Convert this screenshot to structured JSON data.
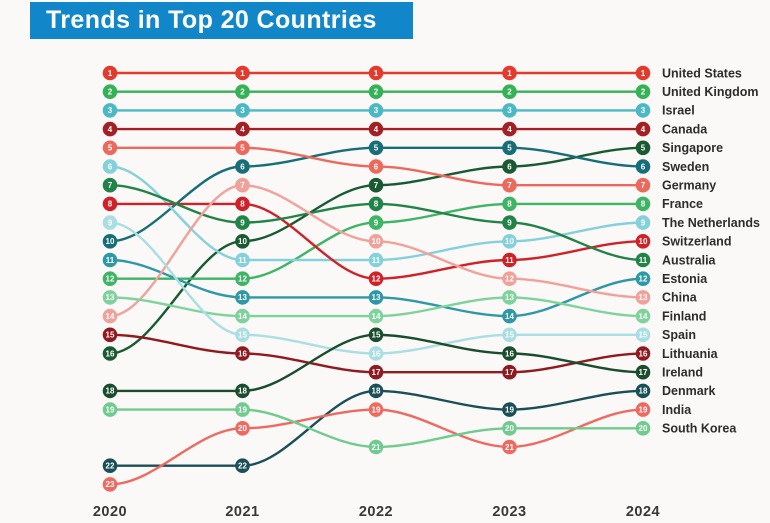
{
  "title": "Trends in Top 20 Countries",
  "banner": {
    "bg": "#1187c9",
    "text_color": "#ffffff"
  },
  "text_colors": {
    "country_labels": "#2e2d2b",
    "year_labels": "#3a3836",
    "node_number": "#ffffff"
  },
  "chart_data": {
    "type": "line",
    "variant": "bump-rank",
    "title": "Trends in Top 20 Countries",
    "x": [
      2020,
      2021,
      2022,
      2023,
      2024
    ],
    "x_tick_labels": [
      "2020",
      "2021",
      "2022",
      "2023",
      "2024"
    ],
    "ylabel": "rank (1 = top, axis inverted)",
    "ylim": [
      1,
      23
    ],
    "grid": false,
    "legend_position": "right-edge country labels at final 2024 rank",
    "node_label": "rank number shown inside each node circle",
    "series": [
      {
        "name": "United States",
        "color": "#e23b2e",
        "ranks": [
          1,
          1,
          1,
          1,
          1
        ]
      },
      {
        "name": "United Kingdom",
        "color": "#35b156",
        "ranks": [
          2,
          2,
          2,
          2,
          2
        ]
      },
      {
        "name": "Israel",
        "color": "#4bb8c6",
        "ranks": [
          3,
          3,
          3,
          3,
          3
        ]
      },
      {
        "name": "Canada",
        "color": "#a32124",
        "ranks": [
          4,
          4,
          4,
          4,
          4
        ]
      },
      {
        "name": "Singapore",
        "color": "#1a5a32",
        "ranks": [
          16,
          10,
          7,
          6,
          5
        ]
      },
      {
        "name": "Sweden",
        "color": "#176e78",
        "ranks": [
          10,
          6,
          5,
          5,
          6
        ]
      },
      {
        "name": "Germany",
        "color": "#ec6a5d",
        "ranks": [
          5,
          5,
          6,
          7,
          7
        ]
      },
      {
        "name": "France",
        "color": "#3eb465",
        "ranks": [
          12,
          12,
          9,
          8,
          8
        ]
      },
      {
        "name": "The Netherlands",
        "color": "#85d1db",
        "ranks": [
          6,
          11,
          11,
          10,
          9
        ]
      },
      {
        "name": "Switzerland",
        "color": "#cf2128",
        "ranks": [
          8,
          8,
          12,
          11,
          10
        ]
      },
      {
        "name": "Australia",
        "color": "#228349",
        "ranks": [
          7,
          9,
          8,
          9,
          11
        ]
      },
      {
        "name": "Estonia",
        "color": "#2e98a6",
        "ranks": [
          11,
          13,
          13,
          14,
          12
        ]
      },
      {
        "name": "China",
        "color": "#f2a19a",
        "ranks": [
          14,
          7,
          10,
          12,
          13
        ]
      },
      {
        "name": "Finland",
        "color": "#7ed29c",
        "ranks": [
          13,
          14,
          14,
          13,
          14
        ]
      },
      {
        "name": "Spain",
        "color": "#abdee3",
        "ranks": [
          9,
          15,
          16,
          15,
          15
        ]
      },
      {
        "name": "Lithuania",
        "color": "#8f1a1f",
        "ranks": [
          15,
          16,
          17,
          17,
          16
        ]
      },
      {
        "name": "Ireland",
        "color": "#1b4c2d",
        "ranks": [
          18,
          18,
          15,
          16,
          17
        ]
      },
      {
        "name": "Denmark",
        "color": "#1a4f57",
        "ranks": [
          22,
          22,
          18,
          19,
          18
        ]
      },
      {
        "name": "India",
        "color": "#ee6a60",
        "ranks": [
          23,
          20,
          19,
          21,
          19
        ]
      },
      {
        "name": "South Korea",
        "color": "#6fcb8e",
        "ranks": [
          19,
          19,
          21,
          20,
          20
        ]
      }
    ]
  }
}
